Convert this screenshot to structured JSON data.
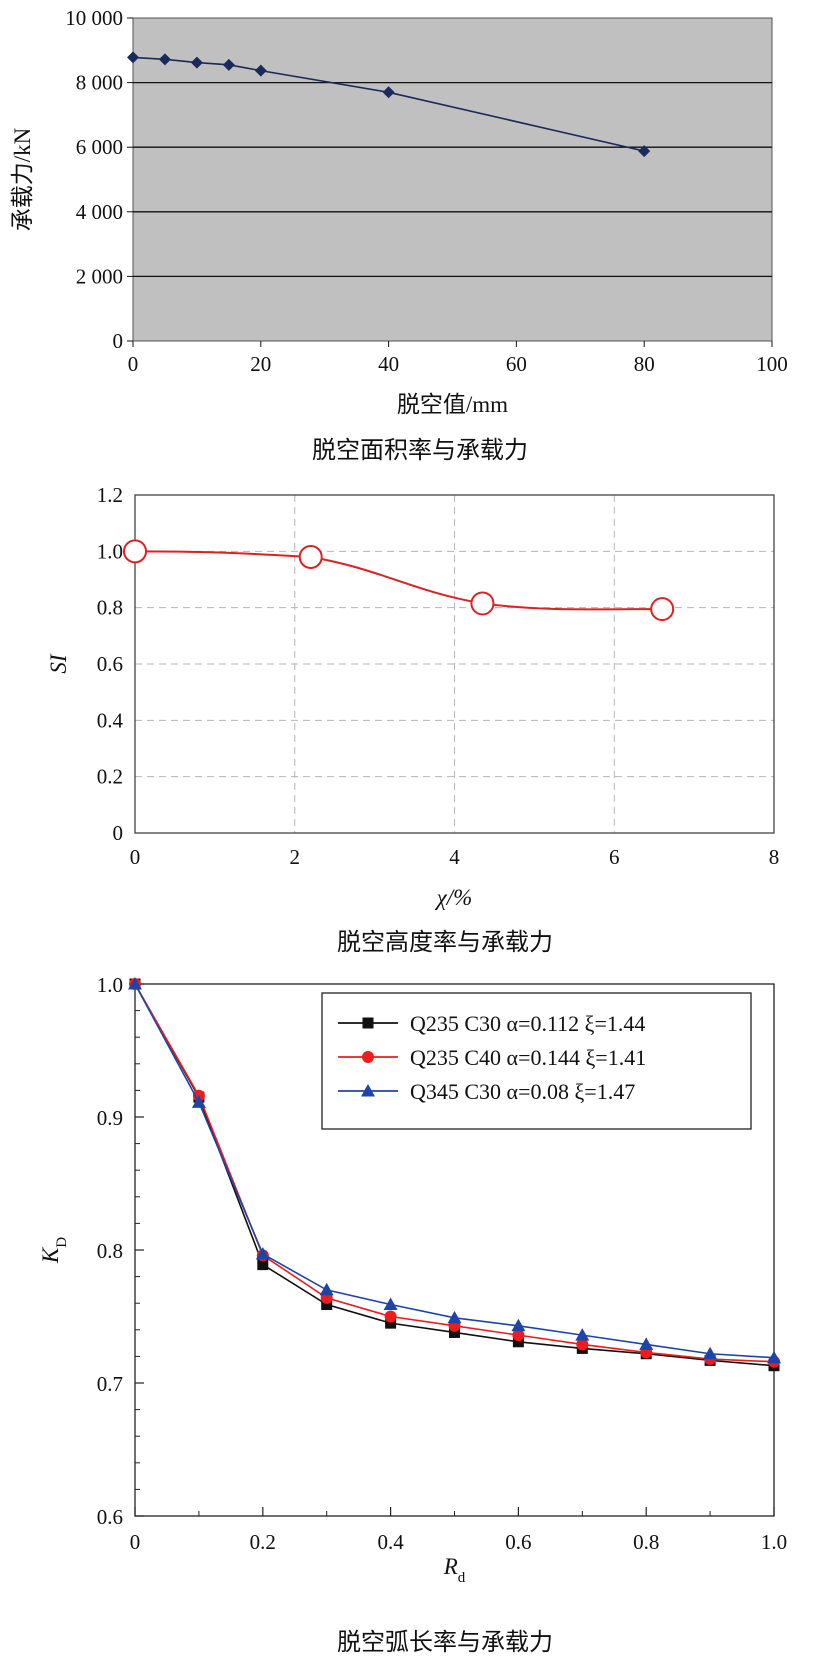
{
  "chart_data": [
    {
      "type": "line",
      "caption": "脱空面积率与承载力",
      "xlabel": "脱空值/mm",
      "ylabel": "承载力/kN",
      "xlim": [
        0,
        100
      ],
      "ylim": [
        0,
        10000
      ],
      "xticks": [
        "0",
        "20",
        "40",
        "60",
        "80",
        "100"
      ],
      "yticks": [
        "0",
        "2 000",
        "4 000",
        "6 000",
        "8 000",
        "10 000"
      ],
      "background": "#c0c0c0",
      "grid": true,
      "series": [
        {
          "color": "#1a2a5a",
          "x": [
            0,
            5,
            10,
            15,
            20,
            40,
            80
          ],
          "y": [
            8780,
            8720,
            8620,
            8550,
            8370,
            7700,
            5880
          ]
        }
      ]
    },
    {
      "type": "line",
      "caption": "脱空高度率与承载力",
      "xlabel": "χ/%",
      "ylabel": "SI",
      "xlim": [
        0,
        8
      ],
      "ylim": [
        0,
        1.2
      ],
      "xticks": [
        "0",
        "2",
        "4",
        "6",
        "8"
      ],
      "yticks": [
        "0",
        "0.2",
        "0.4",
        "0.6",
        "0.8",
        "1.0",
        "1.2"
      ],
      "grid": "dashed",
      "series": [
        {
          "color": "#e02020",
          "x": [
            0,
            2.2,
            4.35,
            6.6
          ],
          "y": [
            1.0,
            0.98,
            0.815,
            0.795
          ]
        }
      ]
    },
    {
      "type": "line",
      "caption": "脱空弧长率与承载力",
      "xlabel": "R_d",
      "ylabel": "K_D",
      "xlim": [
        0,
        1.0
      ],
      "ylim": [
        0.6,
        1.0
      ],
      "xticks": [
        "0",
        "0.2",
        "0.4",
        "0.6",
        "0.8",
        "1.0"
      ],
      "yticks": [
        "0.6",
        "0.7",
        "0.8",
        "0.9",
        "1.0"
      ],
      "legend_position": "top-right",
      "categories": [
        0,
        0.1,
        0.2,
        0.3,
        0.4,
        0.5,
        0.6,
        0.7,
        0.8,
        0.9,
        1.0
      ],
      "series": [
        {
          "name": "Q235 C30 α=0.112 ξ=1.44",
          "color": "#111111",
          "marker": "square",
          "values": [
            1.0,
            0.915,
            0.789,
            0.759,
            0.745,
            0.738,
            0.731,
            0.726,
            0.722,
            0.717,
            0.713
          ]
        },
        {
          "name": "Q235 C40 α=0.144 ξ=1.41",
          "color": "#ee1c1c",
          "marker": "circle",
          "values": [
            1.0,
            0.916,
            0.796,
            0.764,
            0.75,
            0.743,
            0.736,
            0.729,
            0.723,
            0.718,
            0.716
          ]
        },
        {
          "name": "Q345 C30 α=0.08 ξ=1.47",
          "color": "#1f44a8",
          "marker": "triangle",
          "values": [
            1.0,
            0.911,
            0.797,
            0.77,
            0.759,
            0.749,
            0.743,
            0.736,
            0.729,
            0.722,
            0.719
          ]
        }
      ]
    }
  ]
}
